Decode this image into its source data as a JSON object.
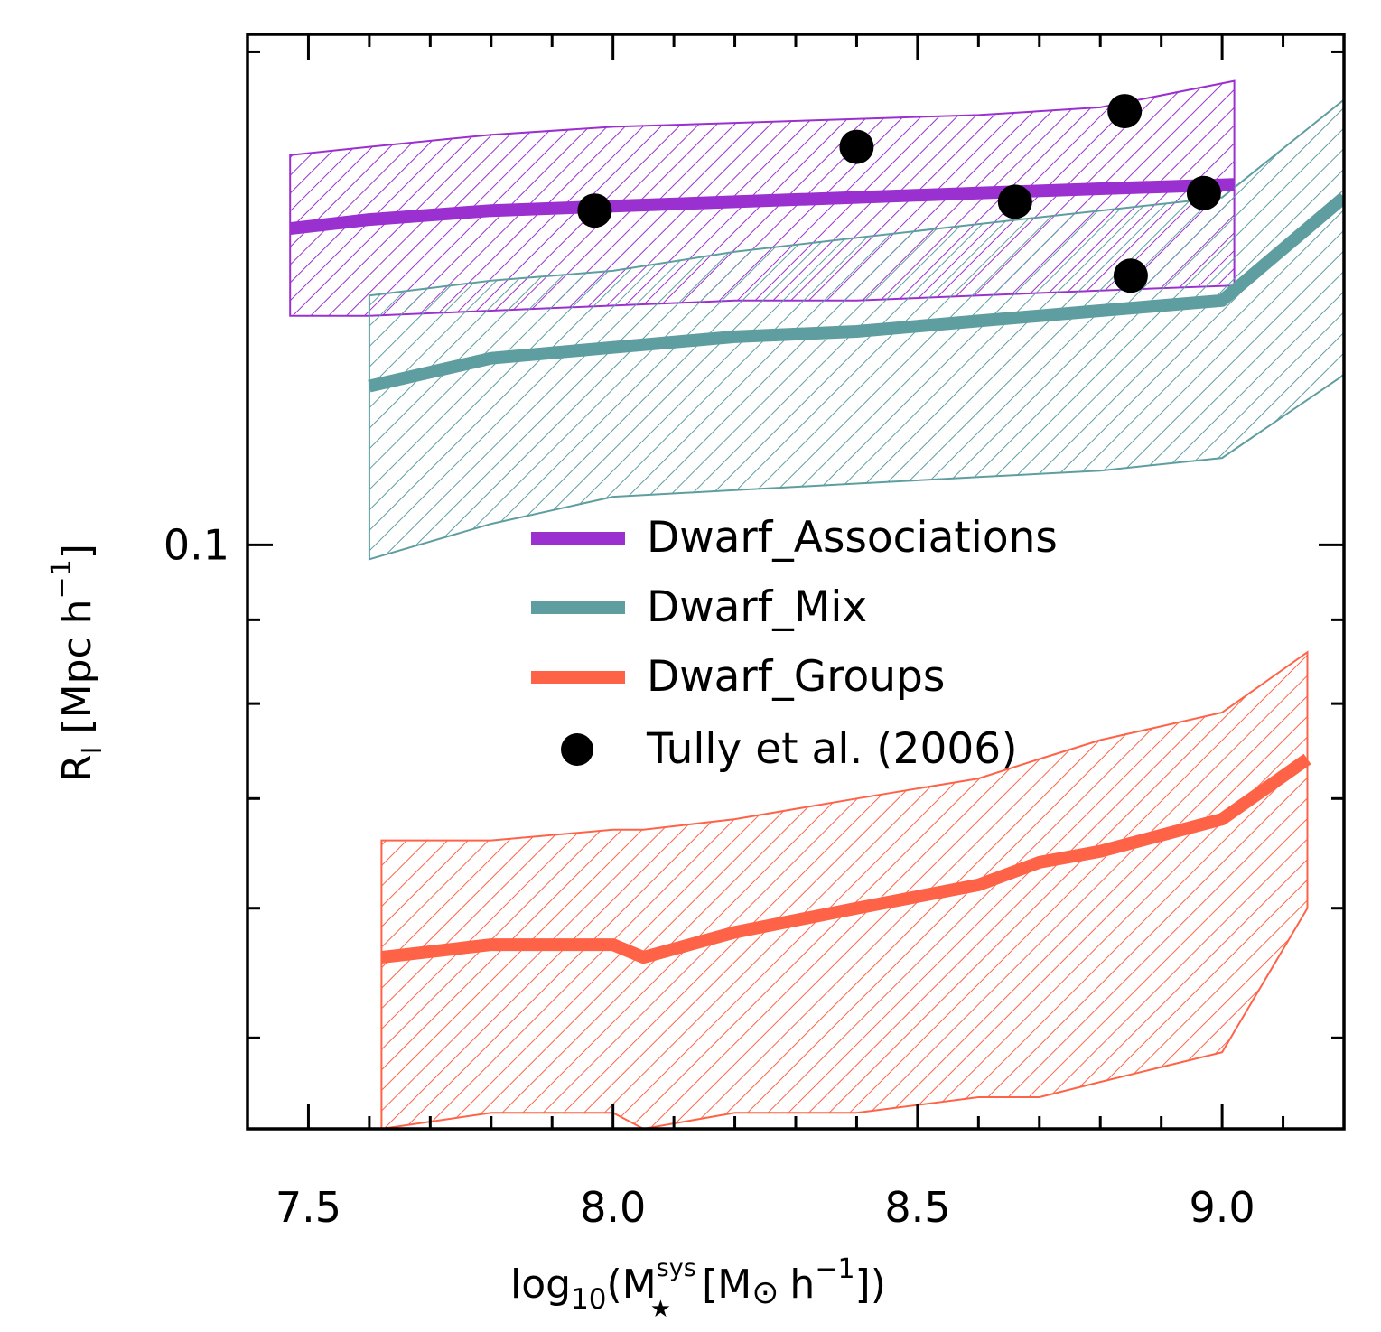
{
  "chart_data": {
    "type": "line",
    "title": "",
    "xlabel": {
      "prefix": "log",
      "prefix_sub": "10",
      "open": "(M",
      "mass_sup": "sys",
      "mass_sub": "★",
      "units_open": "[M",
      "sun_symbol": "⊙",
      "units_h": "h",
      "units_exp": "−1",
      "close": "])"
    },
    "ylabel": {
      "main": "R",
      "sub": "I",
      "units": "[Mpc h",
      "units_exp": "−1",
      "close": "]"
    },
    "xlim": [
      7.4,
      9.2
    ],
    "ylim": [
      0.044,
      0.205
    ],
    "yscale": "log",
    "x_ticks": [
      {
        "value": 7.5,
        "label": "7.5"
      },
      {
        "value": 8.0,
        "label": "8.0"
      },
      {
        "value": 8.5,
        "label": "8.5"
      },
      {
        "value": 9.0,
        "label": "9.0"
      }
    ],
    "x_minor_ticks": [
      7.5,
      7.6,
      7.7,
      7.8,
      7.9,
      8.0,
      8.1,
      8.2,
      8.3,
      8.4,
      8.5,
      8.6,
      8.7,
      8.8,
      8.9,
      9.0,
      9.1
    ],
    "y_ticks": [
      {
        "value": 0.1,
        "label": "0.1"
      }
    ],
    "y_minor_ticks": [
      0.05,
      0.06,
      0.07,
      0.08,
      0.09,
      0.2
    ],
    "series": [
      {
        "name": "Dwarf_Associations",
        "color": "#9b30d0",
        "x": [
          7.47,
          7.6,
          7.8,
          8.0,
          8.2,
          8.4,
          8.6,
          8.8,
          9.02
        ],
        "y": [
          0.156,
          0.158,
          0.16,
          0.161,
          0.162,
          0.163,
          0.164,
          0.165,
          0.166
        ],
        "band_lower": [
          0.138,
          0.138,
          0.139,
          0.14,
          0.141,
          0.141,
          0.142,
          0.143,
          0.144
        ],
        "band_upper": [
          0.173,
          0.175,
          0.178,
          0.18,
          0.181,
          0.182,
          0.183,
          0.185,
          0.192
        ]
      },
      {
        "name": "Dwarf_Mix",
        "color": "#5f9ea0",
        "x": [
          7.6,
          7.8,
          8.0,
          8.2,
          8.4,
          8.6,
          8.8,
          9.0,
          9.2
        ],
        "y": [
          0.125,
          0.13,
          0.132,
          0.134,
          0.135,
          0.137,
          0.139,
          0.141,
          0.163
        ],
        "band_lower": [
          0.098,
          0.103,
          0.107,
          0.108,
          0.109,
          0.11,
          0.111,
          0.113,
          0.127
        ],
        "band_upper": [
          0.142,
          0.145,
          0.147,
          0.151,
          0.154,
          0.157,
          0.16,
          0.163,
          0.187
        ]
      },
      {
        "name": "Dwarf_Groups",
        "color": "#ff6347",
        "x": [
          7.62,
          7.8,
          8.0,
          8.05,
          8.2,
          8.4,
          8.6,
          8.7,
          8.8,
          9.0,
          9.14
        ],
        "y": [
          0.056,
          0.057,
          0.057,
          0.056,
          0.058,
          0.06,
          0.062,
          0.064,
          0.065,
          0.068,
          0.074
        ],
        "band_lower": [
          0.044,
          0.045,
          0.045,
          0.044,
          0.045,
          0.045,
          0.046,
          0.046,
          0.047,
          0.049,
          0.06
        ],
        "band_upper": [
          0.066,
          0.066,
          0.067,
          0.067,
          0.068,
          0.07,
          0.072,
          0.074,
          0.076,
          0.079,
          0.086
        ]
      }
    ],
    "points": {
      "name": "Tully et al. (2006)",
      "color": "#000000",
      "x": [
        7.97,
        8.4,
        8.66,
        8.84,
        8.85,
        8.97
      ],
      "y": [
        0.16,
        0.175,
        0.162,
        0.184,
        0.146,
        0.164
      ]
    },
    "legend": {
      "position": "center-right",
      "items": [
        {
          "label": "Dwarf_Associations",
          "kind": "line",
          "color": "#9b30d0"
        },
        {
          "label": "Dwarf_Mix",
          "kind": "line",
          "color": "#5f9ea0"
        },
        {
          "label": "Dwarf_Groups",
          "kind": "line",
          "color": "#ff6347"
        },
        {
          "label": "Tully et al. (2006)",
          "kind": "marker",
          "color": "#000000"
        }
      ]
    }
  }
}
